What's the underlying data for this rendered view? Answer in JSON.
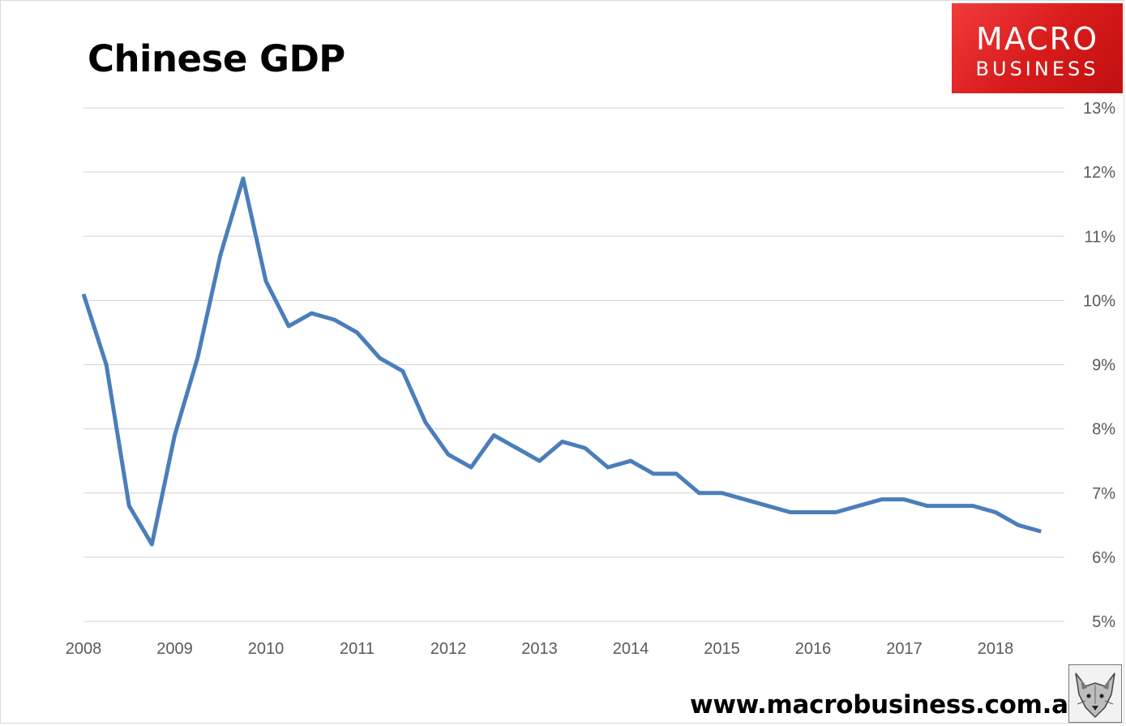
{
  "header": {
    "title": "Chinese GDP",
    "logo_line1": "MACRO",
    "logo_line2": "BUSINESS",
    "logo_color": "#d61a1a"
  },
  "footer": {
    "website": "www.macrobusiness.com.au",
    "emblem_icon": "fox-emblem-icon"
  },
  "chart_data": {
    "type": "line",
    "title": "Chinese GDP",
    "xlabel": "",
    "ylabel": "",
    "y_axis_side": "right",
    "ylim": [
      5,
      13
    ],
    "y_ticks": [
      5,
      6,
      7,
      8,
      9,
      10,
      11,
      12,
      13
    ],
    "y_tick_labels": [
      "5%",
      "6%",
      "7%",
      "8%",
      "9%",
      "10%",
      "11%",
      "12%",
      "13%"
    ],
    "x_tick_labels": [
      "2008",
      "2009",
      "2010",
      "2011",
      "2012",
      "2013",
      "2014",
      "2015",
      "2016",
      "2017",
      "2018"
    ],
    "grid": true,
    "line_color": "#4a7ebb",
    "series": [
      {
        "values": [
          10.1,
          9.0,
          6.8,
          6.2,
          7.9,
          9.1,
          10.7,
          11.9,
          10.3,
          9.6,
          9.8,
          9.7,
          9.5,
          9.1,
          8.9,
          8.1,
          7.6,
          7.4,
          7.9,
          7.7,
          7.5,
          7.8,
          7.7,
          7.4,
          7.5,
          7.3,
          7.3,
          7.0,
          7.0,
          6.9,
          6.8,
          6.7,
          6.7,
          6.7,
          6.8,
          6.9,
          6.9,
          6.8,
          6.8,
          6.8,
          6.7,
          6.5,
          6.4
        ]
      }
    ]
  }
}
